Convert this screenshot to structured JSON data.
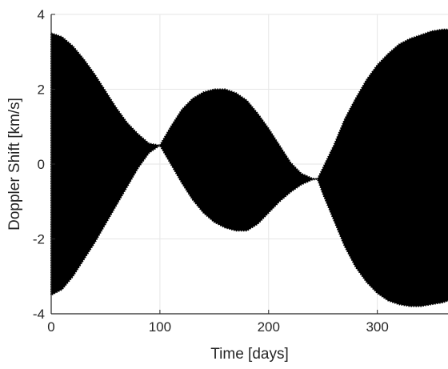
{
  "chart_data": {
    "type": "area",
    "title": "",
    "xlabel": "Time [days]",
    "ylabel": "Doppler Shift [km/s]",
    "xlim": [
      0,
      365
    ],
    "ylim": [
      -4,
      4
    ],
    "x_ticks": [
      0,
      100,
      200,
      300
    ],
    "y_ticks": [
      -4,
      -2,
      0,
      2,
      4
    ],
    "grid": true,
    "colors": {
      "fill": "#000000",
      "grid": "#e6e6e6",
      "axis": "#262626"
    },
    "series": [
      {
        "envelope_x": [
          0,
          10,
          20,
          30,
          40,
          50,
          60,
          70,
          80,
          90,
          100,
          110,
          120,
          130,
          140,
          150,
          160,
          170,
          180,
          190,
          200,
          210,
          220,
          230,
          240,
          245,
          250,
          260,
          270,
          280,
          290,
          300,
          310,
          320,
          330,
          340,
          350,
          360,
          365
        ],
        "upper": [
          3.5,
          3.4,
          3.15,
          2.8,
          2.4,
          1.95,
          1.5,
          1.1,
          0.8,
          0.55,
          0.5,
          1.0,
          1.45,
          1.75,
          1.92,
          2.0,
          2.0,
          1.9,
          1.7,
          1.35,
          0.95,
          0.5,
          0.05,
          -0.25,
          -0.38,
          -0.4,
          -0.1,
          0.5,
          1.2,
          1.75,
          2.25,
          2.65,
          2.95,
          3.2,
          3.35,
          3.45,
          3.55,
          3.6,
          3.6
        ],
        "lower": [
          -3.5,
          -3.35,
          -3.0,
          -2.55,
          -2.1,
          -1.6,
          -1.1,
          -0.6,
          -0.1,
          0.3,
          0.5,
          0.0,
          -0.5,
          -0.95,
          -1.3,
          -1.55,
          -1.7,
          -1.78,
          -1.78,
          -1.6,
          -1.3,
          -1.0,
          -0.75,
          -0.55,
          -0.42,
          -0.4,
          -0.8,
          -1.5,
          -2.2,
          -2.75,
          -3.15,
          -3.45,
          -3.65,
          -3.75,
          -3.8,
          -3.8,
          -3.75,
          -3.7,
          -3.65
        ]
      }
    ]
  }
}
